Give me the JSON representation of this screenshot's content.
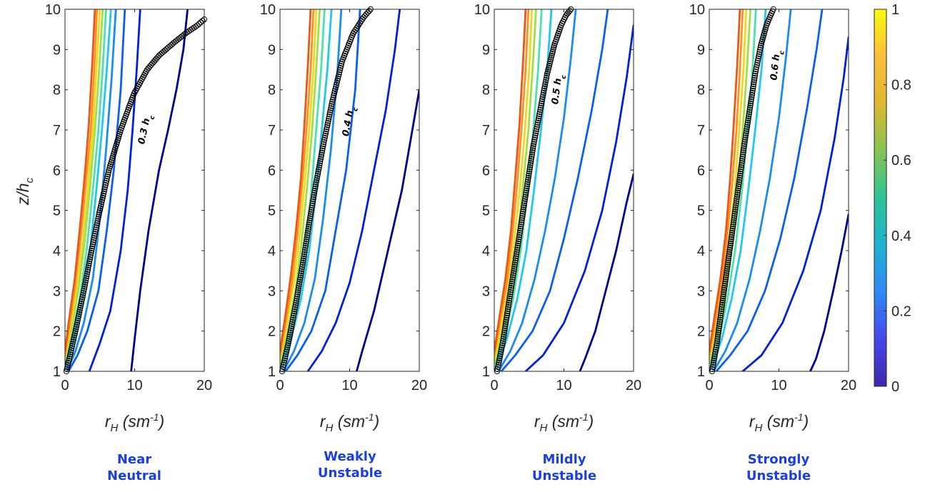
{
  "chart_data": [
    {
      "type": "line",
      "caption": [
        "Near",
        "Neutral"
      ],
      "xlabel": "r_H (sm^-1)",
      "ylabel": "z/h_c",
      "xlim": [
        0,
        20
      ],
      "ylim": [
        1,
        10
      ],
      "xticks": [
        0,
        10,
        20
      ],
      "yticks": [
        1,
        2,
        3,
        4,
        5,
        6,
        7,
        8,
        9,
        10
      ],
      "annotation": "0.3 h_c",
      "series": [
        {
          "color": "#00008f",
          "x": [
            9.5,
            10.0,
            10.8,
            12.0,
            13.5,
            14.8,
            16.0,
            17.0,
            17.6
          ],
          "y": [
            1.0,
            1.8,
            3.0,
            4.5,
            6.0,
            7.0,
            8.0,
            9.0,
            10.0
          ]
        },
        {
          "color": "#0020dc",
          "x": [
            3.5,
            5.0,
            6.5,
            8.0,
            9.0,
            9.7,
            10.3,
            10.8
          ],
          "y": [
            1.0,
            1.7,
            2.5,
            4.0,
            5.5,
            7.0,
            8.5,
            10.0
          ]
        },
        {
          "color": "#0a5ff0",
          "x": [
            0.5,
            1.8,
            3.2,
            4.8,
            6.0,
            7.0,
            8.0,
            8.6
          ],
          "y": [
            1.0,
            1.4,
            2.0,
            3.0,
            4.5,
            6.0,
            8.0,
            10.0
          ]
        },
        {
          "color": "#1a8cf0",
          "x": [
            0.3,
            1.5,
            2.7,
            4.0,
            5.0,
            5.9,
            6.7,
            7.3
          ],
          "y": [
            1.0,
            1.5,
            2.2,
            3.3,
            4.8,
            6.5,
            8.3,
            10.0
          ]
        },
        {
          "color": "#20c8f0",
          "x": [
            0.2,
            1.3,
            2.5,
            3.6,
            4.5,
            5.3,
            6.0,
            6.6
          ],
          "y": [
            1.1,
            1.8,
            2.8,
            4.0,
            5.5,
            7.0,
            8.5,
            10.0
          ]
        },
        {
          "color": "#50e0b0",
          "x": [
            0.1,
            1.0,
            2.1,
            3.1,
            4.0,
            4.8,
            5.4,
            5.9
          ],
          "y": [
            1.1,
            1.8,
            2.8,
            4.0,
            5.5,
            7.0,
            8.5,
            10.0
          ]
        },
        {
          "color": "#a0e040",
          "x": [
            0.05,
            0.9,
            1.9,
            2.8,
            3.6,
            4.3,
            4.9,
            5.4
          ],
          "y": [
            1.2,
            2.0,
            3.0,
            4.2,
            5.6,
            7.0,
            8.5,
            10.0
          ]
        },
        {
          "color": "#f0d820",
          "x": [
            0.0,
            0.8,
            1.7,
            2.6,
            3.3,
            4.0,
            4.5,
            5.0
          ],
          "y": [
            1.3,
            2.1,
            3.1,
            4.3,
            5.6,
            7.0,
            8.5,
            10.0
          ]
        },
        {
          "color": "#ff9020",
          "x": [
            0.0,
            0.7,
            1.5,
            2.3,
            3.0,
            3.7,
            4.2,
            4.6
          ],
          "y": [
            1.4,
            2.2,
            3.2,
            4.4,
            5.7,
            7.0,
            8.5,
            10.0
          ]
        },
        {
          "color": "#e85818",
          "x": [
            0.0,
            0.6,
            1.4,
            2.1,
            2.8,
            3.4,
            3.9,
            4.3
          ],
          "y": [
            1.5,
            2.3,
            3.3,
            4.5,
            5.8,
            7.1,
            8.6,
            10.0
          ]
        }
      ],
      "markers": {
        "x": [
          0.2,
          1.5,
          2.7,
          3.8,
          5.0,
          6.3,
          8.0,
          9.9,
          11.8,
          13.5,
          15.5,
          17.3,
          19.0,
          20.0
        ],
        "y": [
          1.0,
          2.0,
          3.0,
          4.0,
          5.0,
          6.0,
          7.0,
          7.9,
          8.5,
          8.85,
          9.15,
          9.4,
          9.6,
          9.75
        ]
      }
    },
    {
      "type": "line",
      "caption": [
        "Weakly",
        "Unstable"
      ],
      "xlabel": "r_H (sm^-1)",
      "ylabel": "",
      "xlim": [
        0,
        20
      ],
      "ylim": [
        1,
        10
      ],
      "xticks": [
        0,
        10,
        20
      ],
      "yticks": [
        1,
        2,
        3,
        4,
        5,
        6,
        7,
        8,
        9,
        10
      ],
      "annotation": "0.4 h_c",
      "series": [
        {
          "color": "#00008f",
          "x": [
            11.0,
            11.8,
            13.5,
            15.5,
            17.5,
            19.0,
            20.0
          ],
          "y": [
            1.0,
            1.5,
            2.5,
            4.0,
            5.5,
            7.0,
            8.0
          ]
        },
        {
          "color": "#0020dc",
          "x": [
            4.0,
            6.0,
            8.0,
            10.0,
            11.8,
            13.5,
            15.2,
            16.5,
            17.2
          ],
          "y": [
            1.0,
            1.5,
            2.2,
            3.2,
            4.5,
            6.0,
            7.5,
            9.0,
            10.0
          ]
        },
        {
          "color": "#0a5ff0",
          "x": [
            0.8,
            2.5,
            4.5,
            6.5,
            8.0,
            9.5,
            10.8,
            11.5
          ],
          "y": [
            1.0,
            1.4,
            2.0,
            3.0,
            4.5,
            6.0,
            8.0,
            10.0
          ]
        },
        {
          "color": "#1a8cf0",
          "x": [
            0.5,
            2.0,
            3.5,
            5.0,
            6.2,
            7.3,
            8.2,
            8.8
          ],
          "y": [
            1.0,
            1.5,
            2.2,
            3.3,
            4.8,
            6.5,
            8.3,
            10.0
          ]
        },
        {
          "color": "#20c8f0",
          "x": [
            0.3,
            1.6,
            3.0,
            4.2,
            5.2,
            6.0,
            6.8,
            7.4
          ],
          "y": [
            1.1,
            1.8,
            2.8,
            4.0,
            5.5,
            7.0,
            8.5,
            10.0
          ]
        },
        {
          "color": "#50e0b0",
          "x": [
            0.2,
            1.3,
            2.5,
            3.6,
            4.5,
            5.2,
            5.9,
            6.4
          ],
          "y": [
            1.1,
            1.8,
            2.8,
            4.0,
            5.5,
            7.0,
            8.5,
            10.0
          ]
        },
        {
          "color": "#a0e040",
          "x": [
            0.1,
            1.1,
            2.2,
            3.1,
            3.9,
            4.6,
            5.2,
            5.7
          ],
          "y": [
            1.2,
            2.0,
            3.0,
            4.2,
            5.6,
            7.0,
            8.5,
            10.0
          ]
        },
        {
          "color": "#f0d820",
          "x": [
            0.0,
            0.9,
            1.9,
            2.8,
            3.5,
            4.2,
            4.8,
            5.2
          ],
          "y": [
            1.3,
            2.1,
            3.1,
            4.3,
            5.6,
            7.0,
            8.5,
            10.0
          ]
        },
        {
          "color": "#ff9020",
          "x": [
            0.0,
            0.8,
            1.7,
            2.5,
            3.2,
            3.8,
            4.4,
            4.8
          ],
          "y": [
            1.4,
            2.2,
            3.2,
            4.4,
            5.7,
            7.0,
            8.5,
            10.0
          ]
        },
        {
          "color": "#e85818",
          "x": [
            0.0,
            0.7,
            1.5,
            2.3,
            3.0,
            3.5,
            4.0,
            4.4
          ],
          "y": [
            1.5,
            2.3,
            3.3,
            4.5,
            5.8,
            7.1,
            8.6,
            10.0
          ]
        }
      ],
      "markers": {
        "x": [
          0.3,
          1.2,
          2.3,
          3.3,
          4.2,
          5.2,
          6.3,
          7.5,
          8.9,
          10.5,
          12.0,
          13.0
        ],
        "y": [
          1.0,
          1.7,
          2.7,
          3.7,
          4.7,
          5.7,
          6.7,
          7.7,
          8.7,
          9.4,
          9.8,
          10.0
        ]
      }
    },
    {
      "type": "line",
      "caption": [
        "Mildly",
        "Unstable"
      ],
      "xlabel": "r_H (sm^-1)",
      "ylabel": "",
      "xlim": [
        0,
        20
      ],
      "ylim": [
        1,
        10
      ],
      "xticks": [
        0,
        10,
        20
      ],
      "yticks": [
        1,
        2,
        3,
        4,
        5,
        6,
        7,
        8,
        9,
        10
      ],
      "annotation": "0.5 h_c",
      "series": [
        {
          "color": "#00008f",
          "x": [
            12.3,
            13.0,
            14.5,
            16.0,
            17.5,
            19.0,
            20.0
          ],
          "y": [
            1.0,
            1.3,
            2.0,
            3.0,
            4.0,
            5.2,
            5.9
          ]
        },
        {
          "color": "#0020dc",
          "x": [
            4.5,
            7.0,
            10.0,
            13.0,
            15.5,
            17.5,
            19.0,
            20.0
          ],
          "y": [
            1.0,
            1.4,
            2.2,
            3.5,
            5.0,
            6.7,
            8.3,
            9.6
          ]
        },
        {
          "color": "#0a5ff0",
          "x": [
            1.0,
            3.0,
            5.5,
            8.0,
            10.0,
            12.0,
            14.0,
            15.5,
            16.3
          ],
          "y": [
            1.0,
            1.4,
            2.0,
            3.0,
            4.3,
            5.8,
            7.5,
            9.0,
            10.0
          ]
        },
        {
          "color": "#1a8cf0",
          "x": [
            0.6,
            2.3,
            4.0,
            5.8,
            7.3,
            8.7,
            10.0,
            11.0,
            11.7
          ],
          "y": [
            1.0,
            1.5,
            2.2,
            3.3,
            4.5,
            5.8,
            7.3,
            8.8,
            10.0
          ]
        },
        {
          "color": "#20c8f0",
          "x": [
            0.4,
            1.8,
            3.3,
            4.6,
            5.7,
            6.7,
            7.6,
            8.2
          ],
          "y": [
            1.1,
            1.8,
            2.8,
            4.0,
            5.5,
            7.0,
            8.5,
            10.0
          ]
        },
        {
          "color": "#50e0b0",
          "x": [
            0.2,
            1.4,
            2.7,
            3.8,
            4.8,
            5.6,
            6.3,
            6.8
          ],
          "y": [
            1.1,
            1.8,
            2.8,
            4.0,
            5.5,
            7.0,
            8.5,
            10.0
          ]
        },
        {
          "color": "#a0e040",
          "x": [
            0.1,
            1.2,
            2.3,
            3.3,
            4.1,
            4.9,
            5.5,
            6.0
          ],
          "y": [
            1.2,
            2.0,
            3.0,
            4.2,
            5.6,
            7.0,
            8.5,
            10.0
          ]
        },
        {
          "color": "#f0d820",
          "x": [
            0.0,
            1.0,
            2.0,
            2.9,
            3.7,
            4.4,
            5.0,
            5.4
          ],
          "y": [
            1.3,
            2.1,
            3.1,
            4.3,
            5.6,
            7.0,
            8.5,
            10.0
          ]
        },
        {
          "color": "#ff9020",
          "x": [
            0.0,
            0.8,
            1.8,
            2.6,
            3.3,
            3.9,
            4.5,
            4.9
          ],
          "y": [
            1.4,
            2.2,
            3.2,
            4.4,
            5.7,
            7.0,
            8.5,
            10.0
          ]
        },
        {
          "color": "#e85818",
          "x": [
            0.0,
            0.7,
            1.6,
            2.4,
            3.0,
            3.6,
            4.1,
            4.5
          ],
          "y": [
            1.5,
            2.3,
            3.3,
            4.5,
            5.8,
            7.1,
            8.6,
            10.0
          ]
        }
      ],
      "markers": {
        "x": [
          0.4,
          1.2,
          2.0,
          2.9,
          3.8,
          4.7,
          5.6,
          6.6,
          7.6,
          8.6,
          9.6,
          10.3,
          11.0
        ],
        "y": [
          1.0,
          1.7,
          2.6,
          3.6,
          4.6,
          5.6,
          6.6,
          7.5,
          8.4,
          9.1,
          9.6,
          9.85,
          10.0
        ]
      }
    },
    {
      "type": "line",
      "caption": [
        "Strongly",
        "Unstable"
      ],
      "xlabel": "r_H (sm^-1)",
      "ylabel": "",
      "xlim": [
        0,
        20
      ],
      "ylim": [
        1,
        10
      ],
      "xticks": [
        0,
        10,
        20
      ],
      "yticks": [
        1,
        2,
        3,
        4,
        5,
        6,
        7,
        8,
        9,
        10
      ],
      "annotation": "0.6 h_c",
      "series": [
        {
          "color": "#00008f",
          "x": [
            14.5,
            15.3,
            16.5,
            17.8,
            19.0,
            20.0
          ],
          "y": [
            1.0,
            1.3,
            2.0,
            3.0,
            4.0,
            4.9
          ]
        },
        {
          "color": "#0020dc",
          "x": [
            4.8,
            7.5,
            10.5,
            13.5,
            16.0,
            18.0,
            19.3,
            20.0
          ],
          "y": [
            1.0,
            1.4,
            2.2,
            3.5,
            5.0,
            6.8,
            8.3,
            9.3
          ]
        },
        {
          "color": "#0a5ff0",
          "x": [
            1.0,
            3.0,
            5.5,
            8.0,
            10.2,
            12.2,
            14.0,
            15.4,
            16.2
          ],
          "y": [
            1.0,
            1.4,
            2.0,
            3.0,
            4.3,
            5.8,
            7.5,
            9.0,
            10.0
          ]
        },
        {
          "color": "#1a8cf0",
          "x": [
            0.6,
            2.3,
            4.0,
            5.8,
            7.3,
            8.7,
            10.0,
            11.0,
            11.7
          ],
          "y": [
            1.0,
            1.5,
            2.2,
            3.3,
            4.5,
            5.8,
            7.3,
            8.8,
            10.0
          ]
        },
        {
          "color": "#20c8f0",
          "x": [
            0.4,
            1.8,
            3.2,
            4.5,
            5.6,
            6.6,
            7.5,
            8.1
          ],
          "y": [
            1.1,
            1.8,
            2.8,
            4.0,
            5.5,
            7.0,
            8.5,
            10.0
          ]
        },
        {
          "color": "#50e0b0",
          "x": [
            0.2,
            1.4,
            2.6,
            3.7,
            4.7,
            5.5,
            6.2,
            6.7
          ],
          "y": [
            1.1,
            1.8,
            2.8,
            4.0,
            5.5,
            7.0,
            8.5,
            10.0
          ]
        },
        {
          "color": "#a0e040",
          "x": [
            0.1,
            1.2,
            2.3,
            3.3,
            4.1,
            4.8,
            5.4,
            5.9
          ],
          "y": [
            1.2,
            2.0,
            3.0,
            4.2,
            5.6,
            7.0,
            8.5,
            10.0
          ]
        },
        {
          "color": "#f0d820",
          "x": [
            0.0,
            1.0,
            2.0,
            2.9,
            3.7,
            4.3,
            4.9,
            5.3
          ],
          "y": [
            1.3,
            2.1,
            3.1,
            4.3,
            5.6,
            7.0,
            8.5,
            10.0
          ]
        },
        {
          "color": "#ff9020",
          "x": [
            0.0,
            0.8,
            1.8,
            2.6,
            3.3,
            3.9,
            4.4,
            4.8
          ],
          "y": [
            1.4,
            2.2,
            3.2,
            4.4,
            5.7,
            7.0,
            8.5,
            10.0
          ]
        },
        {
          "color": "#e85818",
          "x": [
            0.0,
            0.7,
            1.6,
            2.4,
            3.0,
            3.5,
            4.0,
            4.4
          ],
          "y": [
            1.5,
            2.3,
            3.3,
            4.5,
            5.8,
            7.1,
            8.6,
            10.0
          ]
        }
      ],
      "markers": {
        "x": [
          0.4,
          1.1,
          1.8,
          2.6,
          3.4,
          4.2,
          5.0,
          5.8,
          6.6,
          7.4,
          8.2,
          8.8,
          9.2
        ],
        "y": [
          1.0,
          1.7,
          2.6,
          3.6,
          4.6,
          5.6,
          6.6,
          7.5,
          8.4,
          9.1,
          9.6,
          9.85,
          10.0
        ]
      }
    }
  ],
  "colorbar": {
    "limits": [
      0,
      1
    ],
    "ticks": [
      "0",
      "0.2",
      "0.4",
      "0.6",
      "0.8",
      "1"
    ],
    "stops": [
      "#3e26a8",
      "#4746eb",
      "#2f89f5",
      "#1fb2d1",
      "#2dc394",
      "#86c553",
      "#ddb82f",
      "#fdbd3c",
      "#f9fb0e"
    ]
  }
}
